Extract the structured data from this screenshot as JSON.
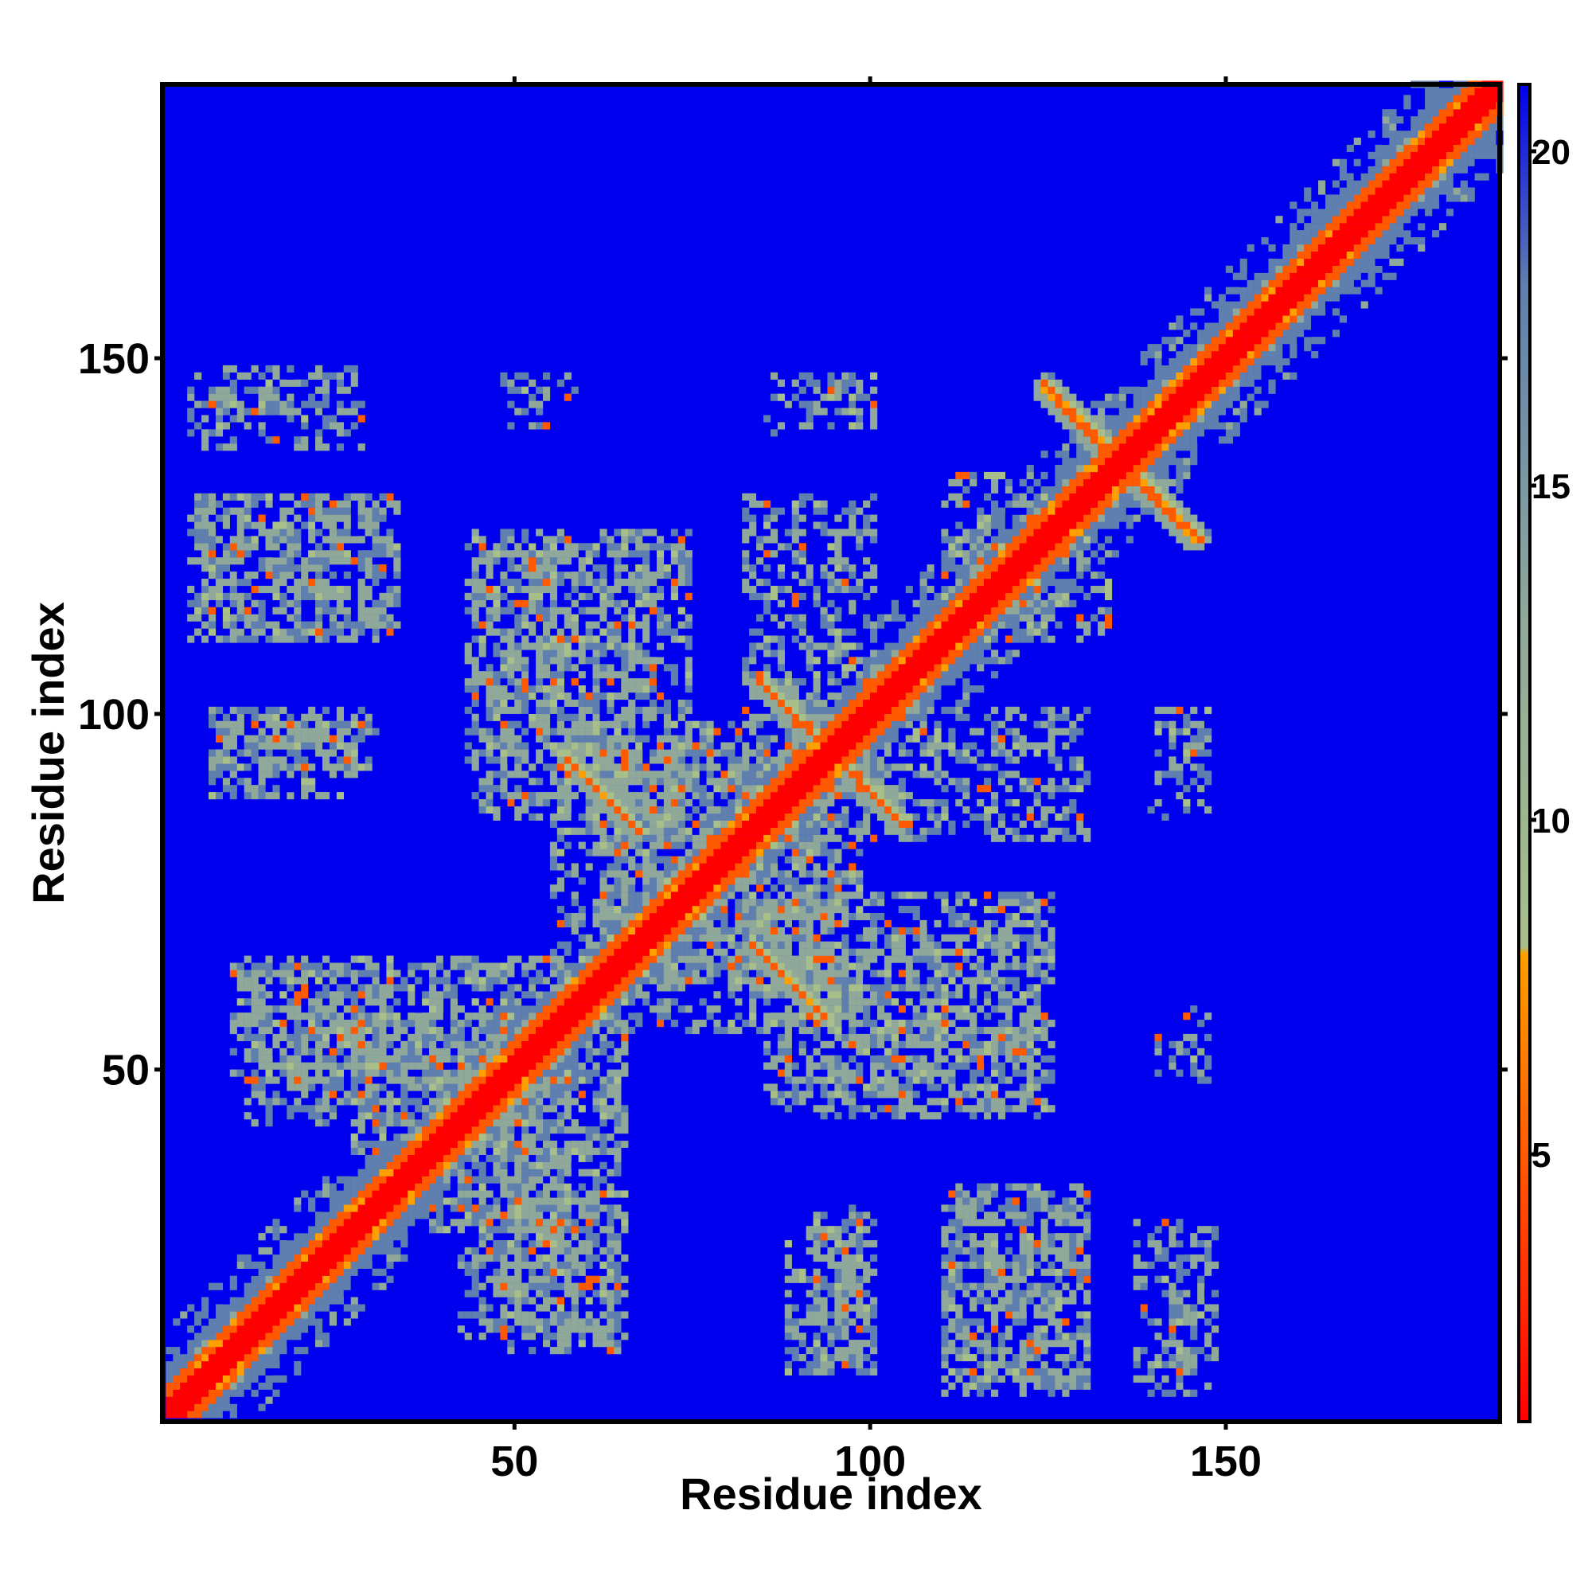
{
  "chart_data": {
    "type": "heatmap",
    "title": "",
    "xlabel": "Residue index",
    "ylabel": "Residue index",
    "n_residues": 188,
    "xlim": [
      1,
      188
    ],
    "ylim": [
      1,
      188
    ],
    "x_ticks": [
      50,
      100,
      150
    ],
    "y_ticks": [
      50,
      100,
      150
    ],
    "colorbar": {
      "range": [
        1,
        21
      ],
      "ticks": [
        5,
        10,
        15,
        20
      ],
      "stops": [
        {
          "value": 1,
          "color": "#ff0000"
        },
        {
          "value": 5,
          "color": "#ff5a00"
        },
        {
          "value": 8,
          "color": "#ff9f00"
        },
        {
          "value": 8.1,
          "color": "#a8bf8a"
        },
        {
          "value": 13,
          "color": "#8fa89a"
        },
        {
          "value": 18,
          "color": "#5f7fae"
        },
        {
          "value": 21,
          "color": "#0000ee"
        }
      ],
      "background_color": "#0000ee"
    },
    "description_of_values": "pairwise residue distance (symmetric contact map); values above 21 clipped to blue",
    "diagonal": {
      "band_width": 4,
      "value": 1.5
    },
    "contact_blocks": [
      {
        "x": [
          5,
          27
        ],
        "y": [
          142,
          148
        ],
        "density": 0.45
      },
      {
        "x": [
          5,
          32
        ],
        "y": [
          110,
          130
        ],
        "density": 0.45
      },
      {
        "x": [
          7,
          30
        ],
        "y": [
          92,
          100
        ],
        "density": 0.55
      },
      {
        "x": [
          10,
          38
        ],
        "y": [
          48,
          64
        ],
        "density": 0.55
      },
      {
        "x": [
          27,
          65
        ],
        "y": [
          38,
          57
        ],
        "density": 0.5
      },
      {
        "x": [
          42,
          65
        ],
        "y": [
          12,
          32
        ],
        "density": 0.5
      },
      {
        "x": [
          43,
          70
        ],
        "y": [
          90,
          124
        ],
        "density": 0.45
      },
      {
        "x": [
          55,
          95
        ],
        "y": [
          62,
          98
        ],
        "density": 0.45
      },
      {
        "x": [
          82,
          100
        ],
        "y": [
          98,
          130
        ],
        "density": 0.45
      },
      {
        "x": [
          85,
          125
        ],
        "y": [
          44,
          74
        ],
        "density": 0.45
      },
      {
        "x": [
          88,
          98
        ],
        "y": [
          7,
          28
        ],
        "density": 0.45
      },
      {
        "x": [
          110,
          130
        ],
        "y": [
          4,
          33
        ],
        "density": 0.45
      },
      {
        "x": [
          137,
          145
        ],
        "y": [
          4,
          28
        ],
        "density": 0.45
      },
      {
        "x": [
          140,
          147
        ],
        "y": [
          89,
          100
        ],
        "density": 0.3
      },
      {
        "x": [
          85,
          100
        ],
        "y": [
          139,
          147
        ],
        "density": 0.3
      },
      {
        "x": [
          48,
          58
        ],
        "y": [
          144,
          147
        ],
        "density": 0.3
      },
      {
        "x": [
          110,
          125
        ],
        "y": [
          114,
          133
        ],
        "density": 0.4
      },
      {
        "x": [
          140,
          147
        ],
        "y": [
          49,
          54
        ],
        "density": 0.3
      }
    ],
    "antiparallel_strands": [
      {
        "from": [
          124,
          146
        ],
        "to": [
          145,
          124
        ]
      },
      {
        "from": [
          84,
          104
        ],
        "to": [
          104,
          84
        ]
      },
      {
        "from": [
          57,
          93
        ],
        "to": [
          66,
          84
        ]
      },
      {
        "from": [
          83,
          67
        ],
        "to": [
          92,
          58
        ]
      }
    ],
    "legend": null,
    "grid": false
  }
}
